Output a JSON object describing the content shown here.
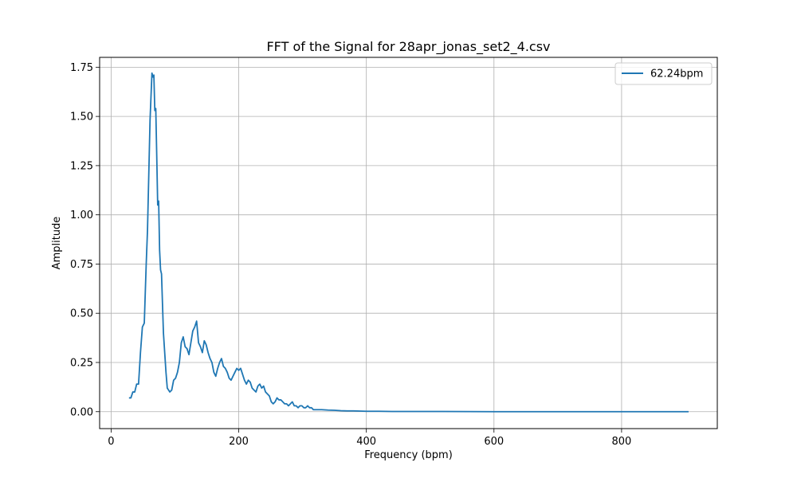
{
  "chart_data": {
    "type": "line",
    "title": "FFT of the Signal for 28apr_jonas_set2_4.csv",
    "xlabel": "Frequency (bpm)",
    "ylabel": "Amplitude",
    "xlim": [
      -18,
      950
    ],
    "ylim": [
      -0.086,
      1.8
    ],
    "xticks": [
      0,
      200,
      400,
      600,
      800
    ],
    "yticks": [
      0.0,
      0.25,
      0.5,
      0.75,
      1.0,
      1.25,
      1.5,
      1.75
    ],
    "xtick_labels": [
      "0",
      "200",
      "400",
      "600",
      "800"
    ],
    "ytick_labels": [
      "0.00",
      "0.25",
      "0.50",
      "0.75",
      "1.00",
      "1.25",
      "1.50",
      "1.75"
    ],
    "grid": true,
    "legend_position": "top-right",
    "series": [
      {
        "name": "62.24bpm",
        "color": "#1f77b4",
        "x": [
          28,
          31,
          34,
          37,
          40,
          43,
          46,
          49,
          52,
          55,
          57,
          59,
          61,
          62.5,
          64,
          65.5,
          67,
          68.5,
          70,
          71.5,
          73,
          74.5,
          76,
          77.5,
          79,
          80.5,
          82,
          84,
          86,
          88,
          90,
          92,
          95,
          98,
          101,
          104,
          107,
          110,
          113,
          116,
          119,
          122,
          125,
          128,
          131,
          134,
          137,
          140,
          143,
          146,
          149,
          152,
          155,
          158,
          161,
          164,
          167,
          170,
          173,
          176,
          179,
          182,
          185,
          188,
          191,
          194,
          197,
          200,
          203,
          206,
          209,
          212,
          215,
          218,
          221,
          224,
          227,
          230,
          233,
          236,
          239,
          242,
          245,
          248,
          251,
          254,
          257,
          260,
          263,
          266,
          269,
          272,
          275,
          278,
          281,
          284,
          287,
          290,
          293,
          296,
          299,
          302,
          305,
          308,
          311,
          314,
          317,
          320,
          325,
          330,
          340,
          350,
          360,
          370,
          380,
          390,
          400,
          420,
          440,
          480,
          520,
          600,
          700,
          800,
          905
        ],
        "y": [
          0.07,
          0.07,
          0.1,
          0.1,
          0.14,
          0.14,
          0.3,
          0.43,
          0.45,
          0.75,
          0.92,
          1.2,
          1.48,
          1.6,
          1.72,
          1.7,
          1.71,
          1.53,
          1.54,
          1.3,
          1.05,
          1.07,
          0.82,
          0.72,
          0.7,
          0.55,
          0.4,
          0.3,
          0.2,
          0.12,
          0.11,
          0.1,
          0.11,
          0.16,
          0.17,
          0.2,
          0.25,
          0.35,
          0.38,
          0.33,
          0.32,
          0.29,
          0.35,
          0.41,
          0.43,
          0.46,
          0.35,
          0.33,
          0.3,
          0.36,
          0.34,
          0.3,
          0.27,
          0.25,
          0.2,
          0.18,
          0.22,
          0.25,
          0.27,
          0.23,
          0.22,
          0.2,
          0.17,
          0.16,
          0.18,
          0.2,
          0.22,
          0.21,
          0.22,
          0.19,
          0.16,
          0.14,
          0.16,
          0.15,
          0.12,
          0.11,
          0.1,
          0.13,
          0.14,
          0.12,
          0.13,
          0.1,
          0.09,
          0.08,
          0.05,
          0.04,
          0.05,
          0.07,
          0.06,
          0.06,
          0.05,
          0.04,
          0.04,
          0.03,
          0.04,
          0.05,
          0.03,
          0.03,
          0.02,
          0.03,
          0.03,
          0.02,
          0.02,
          0.03,
          0.02,
          0.02,
          0.01,
          0.01,
          0.01,
          0.01,
          0.008,
          0.007,
          0.005,
          0.004,
          0.004,
          0.003,
          0.002,
          0.002,
          0.001,
          0.001,
          0.001,
          0.0,
          0.0,
          0.0,
          0.0
        ]
      }
    ]
  }
}
